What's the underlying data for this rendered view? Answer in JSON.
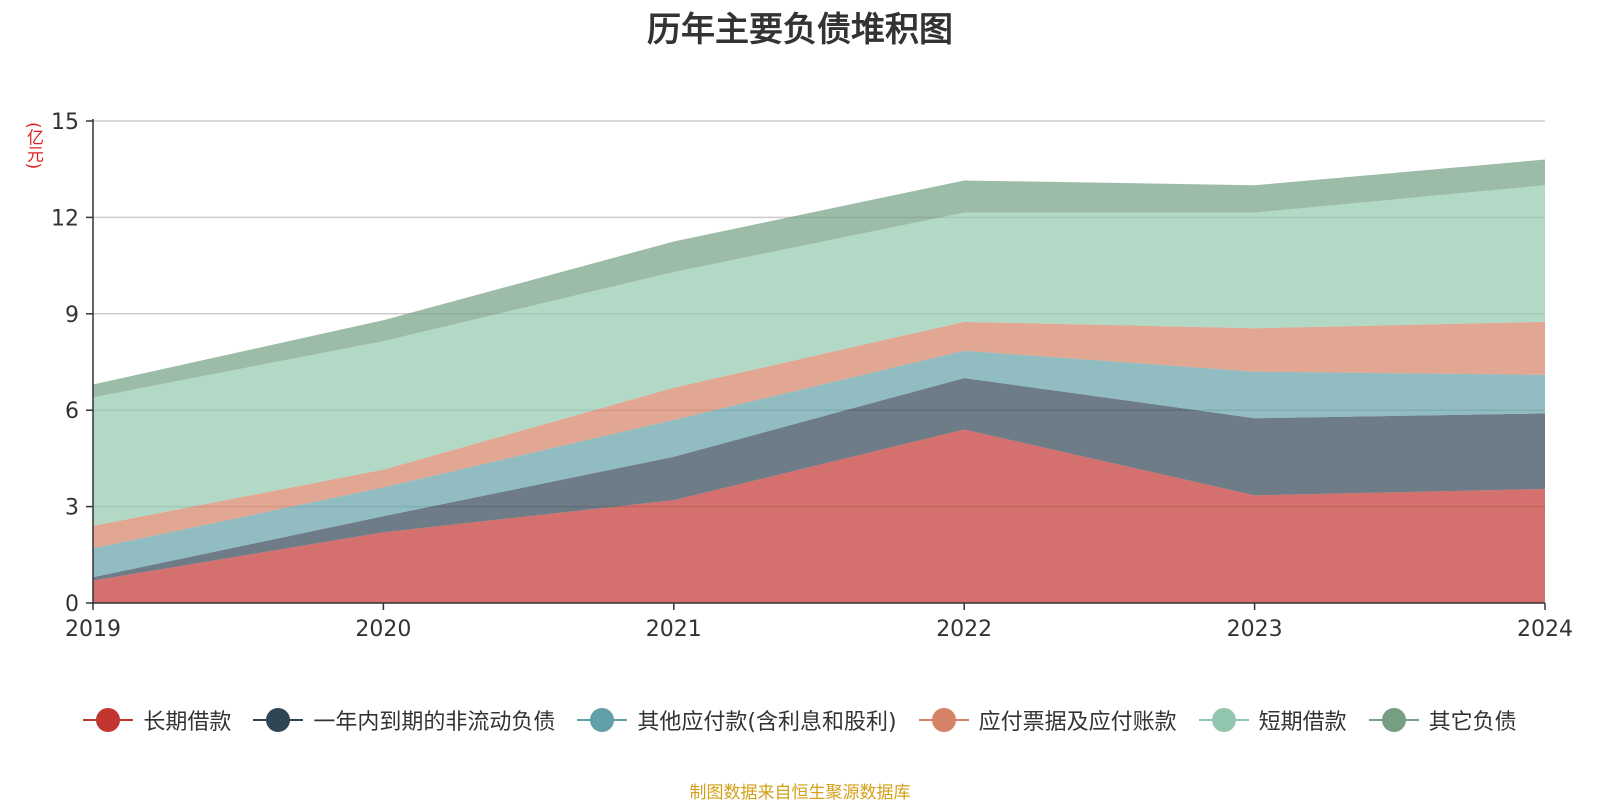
{
  "chart_data": {
    "type": "area",
    "stacked": true,
    "title": "历年主要负债堆积图",
    "unit": "(亿元)",
    "x": [
      "2019",
      "2020",
      "2021",
      "2022",
      "2023",
      "2024"
    ],
    "ylim": [
      0,
      15
    ],
    "yticks": [
      "0",
      "3",
      "6",
      "9",
      "12",
      "15"
    ],
    "grid": true,
    "legend_position": "bottom",
    "series": [
      {
        "name": "长期借款",
        "color": "#c23531",
        "values": [
          0.7,
          2.2,
          3.2,
          5.4,
          3.35,
          3.55
        ]
      },
      {
        "name": "一年内到期的非流动负债",
        "color": "#2f4554",
        "values": [
          0.1,
          0.5,
          1.35,
          1.6,
          2.4,
          2.35
        ]
      },
      {
        "name": "其他应付款(含利息和股利)",
        "color": "#61a0a8",
        "values": [
          0.9,
          0.9,
          1.15,
          0.85,
          1.45,
          1.2
        ]
      },
      {
        "name": "应付票据及应付账款",
        "color": "#d48265",
        "values": [
          0.7,
          0.55,
          1.0,
          0.9,
          1.35,
          1.65
        ]
      },
      {
        "name": "短期借款",
        "color": "#91c7ae",
        "values": [
          4.0,
          4.0,
          3.6,
          3.4,
          3.6,
          4.25
        ]
      },
      {
        "name": "其它负债",
        "color": "#749f83",
        "values": [
          0.4,
          0.65,
          0.95,
          1.0,
          0.85,
          0.8
        ]
      }
    ]
  },
  "source": "制图数据来自恒生聚源数据库"
}
